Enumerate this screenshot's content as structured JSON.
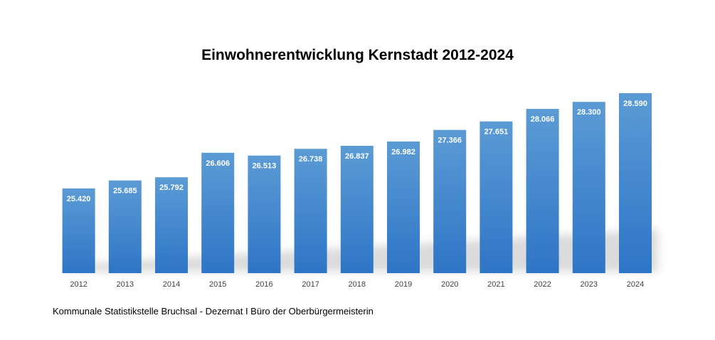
{
  "chart_data": {
    "type": "bar",
    "title": "Einwohnerentwicklung Kernstadt 2012-2024",
    "categories": [
      "2012",
      "2013",
      "2014",
      "2015",
      "2016",
      "2017",
      "2018",
      "2019",
      "2020",
      "2021",
      "2022",
      "2023",
      "2024"
    ],
    "values": [
      25420,
      25685,
      25792,
      26606,
      26513,
      26738,
      26837,
      26982,
      27366,
      27651,
      28066,
      28300,
      28590
    ],
    "data_labels": [
      "25.420",
      "25.685",
      "25.792",
      "26.606",
      "26.513",
      "26.738",
      "26.837",
      "26.982",
      "27.366",
      "27.651",
      "28.066",
      "28.300",
      "28.590"
    ],
    "xlabel": "",
    "ylabel": "",
    "ylim": [
      22600,
      28590
    ],
    "grid": false,
    "legend": "none",
    "colors": {
      "bar_top": "#5b9bd5",
      "bar_bottom": "#2e75c6"
    }
  },
  "footer": {
    "source": "Kommunale Statistikstelle Bruchsal - Dezernat I Büro der Oberbürgermeisterin"
  }
}
